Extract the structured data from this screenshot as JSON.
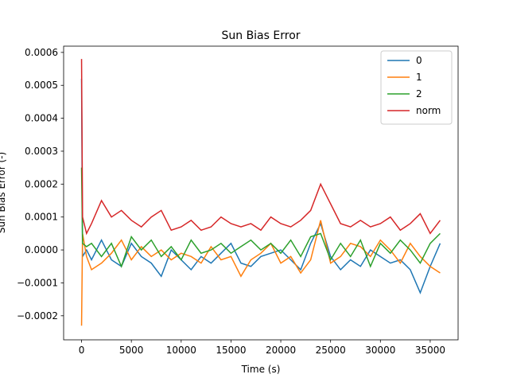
{
  "chart_data": {
    "type": "line",
    "title": "Sun Bias Error",
    "xlabel": "Time (s)",
    "ylabel": "Sun Bias Error (-)",
    "x": [
      0,
      100,
      500,
      1000,
      2000,
      3000,
      4000,
      5000,
      6000,
      7000,
      8000,
      9000,
      10000,
      11000,
      12000,
      13000,
      14000,
      15000,
      16000,
      17000,
      18000,
      19000,
      20000,
      21000,
      22000,
      23000,
      24000,
      25000,
      26000,
      27000,
      28000,
      29000,
      30000,
      31000,
      32000,
      33000,
      34000,
      35000,
      36000
    ],
    "series": [
      {
        "name": "0",
        "color": "#1f77b4",
        "values": [
          0.00052,
          -2e-05,
          0,
          -3e-05,
          3e-05,
          -3e-05,
          -5e-05,
          2e-05,
          -2e-05,
          -4e-05,
          -8e-05,
          0,
          -3e-05,
          -6e-05,
          -2e-05,
          -4e-05,
          -1e-05,
          2e-05,
          -4e-05,
          -5e-05,
          -2e-05,
          -1e-05,
          0,
          -3e-05,
          -6e-05,
          2e-05,
          8e-05,
          -2e-05,
          -6e-05,
          -3e-05,
          -5e-05,
          0,
          -2e-05,
          -4e-05,
          -3e-05,
          -6e-05,
          -0.00013,
          -5e-05,
          2e-05
        ]
      },
      {
        "name": "1",
        "color": "#ff7f0e",
        "values": [
          -0.00023,
          5e-05,
          -2e-05,
          -6e-05,
          -4e-05,
          -1e-05,
          3e-05,
          -3e-05,
          1e-05,
          -2e-05,
          0,
          -3e-05,
          -1e-05,
          -2e-05,
          -4e-05,
          1e-05,
          -3e-05,
          -2e-05,
          -8e-05,
          -3e-05,
          -1e-05,
          2e-05,
          -4e-05,
          -2e-05,
          -7e-05,
          -3e-05,
          9e-05,
          -4e-05,
          -2e-05,
          2e-05,
          1e-05,
          -2e-05,
          3e-05,
          0,
          -4e-05,
          2e-05,
          -2e-05,
          -5e-05,
          -7e-05
        ]
      },
      {
        "name": "2",
        "color": "#2ca02c",
        "values": [
          0.00025,
          2e-05,
          1e-05,
          2e-05,
          -2e-05,
          2e-05,
          -5e-05,
          4e-05,
          0,
          3e-05,
          -2e-05,
          1e-05,
          -3e-05,
          3e-05,
          -1e-05,
          0,
          2e-05,
          -1e-05,
          1e-05,
          3e-05,
          0,
          2e-05,
          -1e-05,
          3e-05,
          -2e-05,
          4e-05,
          5e-05,
          -3e-05,
          2e-05,
          -2e-05,
          3e-05,
          -5e-05,
          2e-05,
          -1e-05,
          3e-05,
          0,
          -4e-05,
          2e-05,
          5e-05
        ]
      },
      {
        "name": "norm",
        "color": "#d62728",
        "values": [
          0.00058,
          0.0001,
          5e-05,
          8e-05,
          0.00015,
          0.0001,
          0.00012,
          9e-05,
          7e-05,
          0.0001,
          0.00012,
          6e-05,
          7e-05,
          9e-05,
          6e-05,
          7e-05,
          0.0001,
          8e-05,
          7e-05,
          8e-05,
          6e-05,
          0.0001,
          8e-05,
          7e-05,
          9e-05,
          0.00012,
          0.0002,
          0.00014,
          8e-05,
          7e-05,
          9e-05,
          7e-05,
          8e-05,
          0.0001,
          6e-05,
          8e-05,
          0.00011,
          5e-05,
          9e-05
        ]
      }
    ],
    "xlim": [
      -1800,
      37800
    ],
    "xticks": [
      0,
      5000,
      10000,
      15000,
      20000,
      25000,
      30000,
      35000
    ],
    "ylim": [
      -0.000273,
      0.000619
    ],
    "yticks": [
      {
        "value": -0.0002,
        "label": "−0.0002"
      },
      {
        "value": -0.0001,
        "label": "−0.0001"
      },
      {
        "value": 0,
        "label": "0.0000"
      },
      {
        "value": 0.0001,
        "label": "0.0001"
      },
      {
        "value": 0.0002,
        "label": "0.0002"
      },
      {
        "value": 0.0003,
        "label": "0.0003"
      },
      {
        "value": 0.0004,
        "label": "0.0004"
      },
      {
        "value": 0.0005,
        "label": "0.0005"
      },
      {
        "value": 0.0006,
        "label": "0.0006"
      }
    ],
    "legend": "upper right"
  }
}
